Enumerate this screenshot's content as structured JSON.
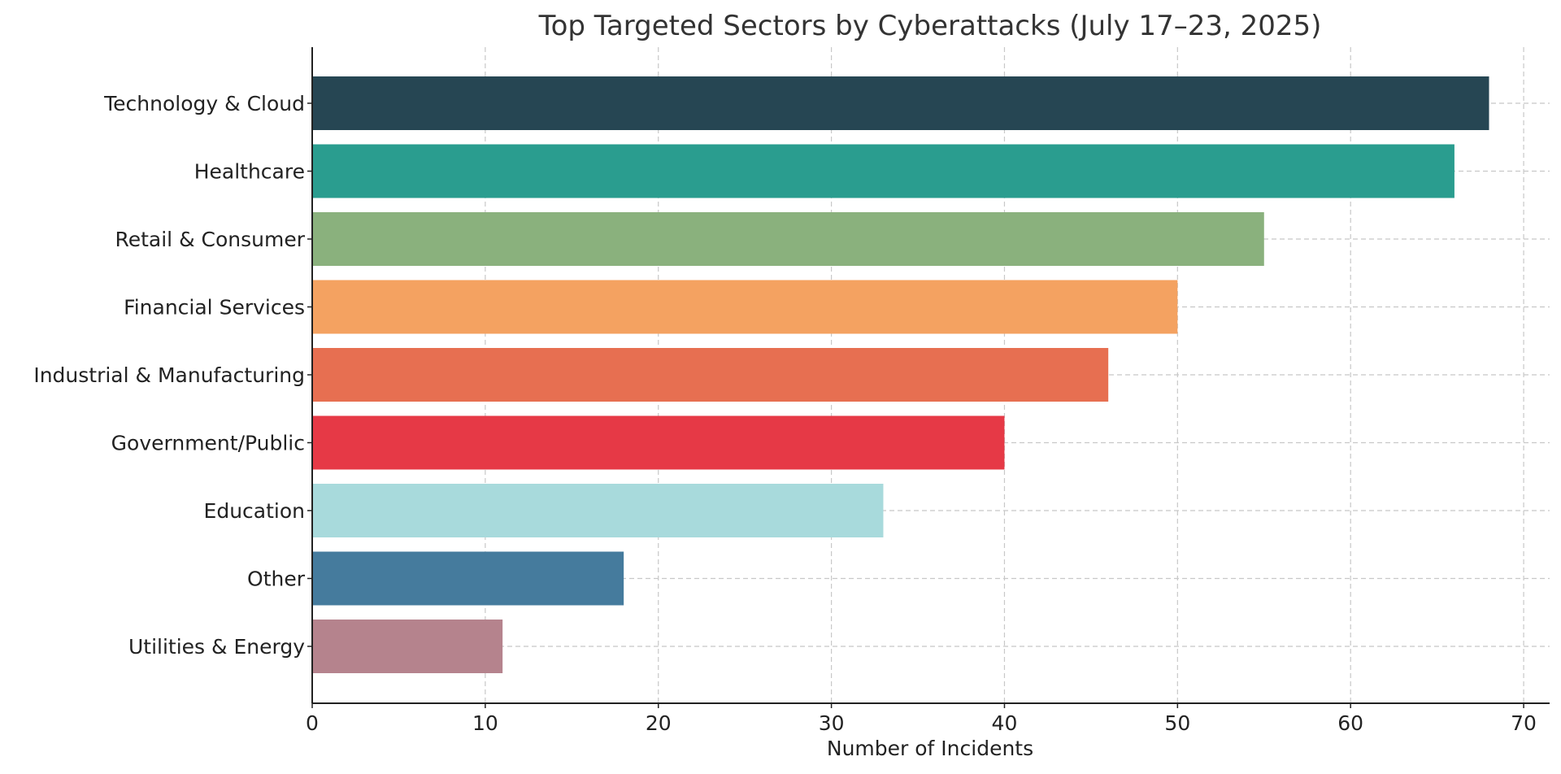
{
  "chart_data": {
    "type": "bar",
    "orientation": "horizontal",
    "title": "Top Targeted Sectors by Cyberattacks (July 17–23, 2025)",
    "xlabel": "Number of Incidents",
    "ylabel": "",
    "xlim": [
      0,
      71.5
    ],
    "xticks": [
      0,
      10,
      20,
      30,
      40,
      50,
      60,
      70
    ],
    "grid": true,
    "categories": [
      "Technology & Cloud",
      "Healthcare",
      "Retail & Consumer",
      "Financial Services",
      "Industrial & Manufacturing",
      "Government/Public",
      "Education",
      "Other",
      "Utilities & Energy"
    ],
    "values": [
      68,
      66,
      55,
      50,
      46,
      40,
      33,
      18,
      11
    ],
    "colors": [
      "#264653",
      "#2a9d8f",
      "#8ab17d",
      "#f4a261",
      "#e76f51",
      "#e63946",
      "#a8dadc",
      "#457b9d",
      "#b5838d"
    ]
  }
}
